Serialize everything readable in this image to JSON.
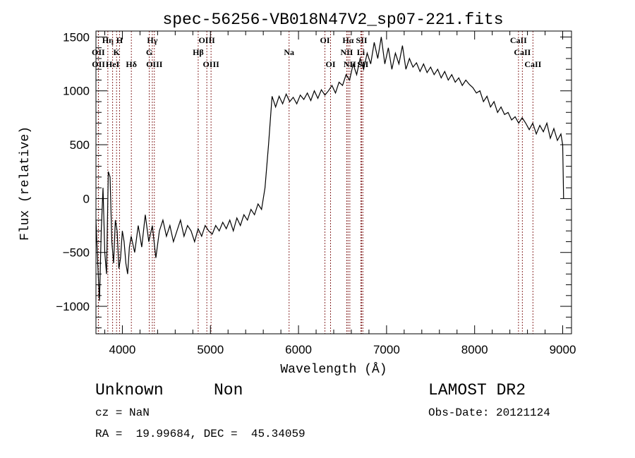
{
  "chart_data": {
    "type": "line",
    "title": "spec-56256-VB018N47V2_sp07-221.fits",
    "xlabel": "Wavelength (Å)",
    "ylabel": "Flux (relative)",
    "xlim": [
      3700,
      9100
    ],
    "ylim": [
      -1255,
      1555
    ],
    "xticks": [
      4000,
      5000,
      6000,
      7000,
      8000,
      9000
    ],
    "xtick_labels": [
      "4000",
      "5000",
      "6000",
      "7000",
      "8000",
      "9000"
    ],
    "yticks": [
      -1000,
      -500,
      0,
      500,
      1000,
      1500
    ],
    "ytick_labels": [
      "−1000",
      "−500",
      "0",
      "500",
      "1000",
      "1500"
    ],
    "grid": false,
    "line_color": "#000000",
    "marker_color": "#8b2e2e",
    "series": [
      {
        "name": "spectrum",
        "points": [
          [
            3700,
            -200
          ],
          [
            3720,
            -600
          ],
          [
            3740,
            -950
          ],
          [
            3760,
            -300
          ],
          [
            3780,
            100
          ],
          [
            3800,
            -500
          ],
          [
            3820,
            -700
          ],
          [
            3840,
            250
          ],
          [
            3860,
            200
          ],
          [
            3880,
            -400
          ],
          [
            3900,
            -600
          ],
          [
            3920,
            -200
          ],
          [
            3940,
            -300
          ],
          [
            3960,
            -650
          ],
          [
            3980,
            -550
          ],
          [
            4000,
            -300
          ],
          [
            4020,
            -400
          ],
          [
            4040,
            -600
          ],
          [
            4060,
            -700
          ],
          [
            4080,
            -450
          ],
          [
            4100,
            -350
          ],
          [
            4140,
            -500
          ],
          [
            4180,
            -250
          ],
          [
            4220,
            -450
          ],
          [
            4260,
            -150
          ],
          [
            4300,
            -400
          ],
          [
            4340,
            -250
          ],
          [
            4380,
            -550
          ],
          [
            4420,
            -300
          ],
          [
            4460,
            -200
          ],
          [
            4500,
            -350
          ],
          [
            4540,
            -250
          ],
          [
            4580,
            -400
          ],
          [
            4620,
            -300
          ],
          [
            4660,
            -200
          ],
          [
            4700,
            -350
          ],
          [
            4740,
            -250
          ],
          [
            4780,
            -300
          ],
          [
            4820,
            -400
          ],
          [
            4860,
            -280
          ],
          [
            4900,
            -350
          ],
          [
            4940,
            -250
          ],
          [
            4980,
            -300
          ],
          [
            5020,
            -330
          ],
          [
            5060,
            -250
          ],
          [
            5100,
            -300
          ],
          [
            5140,
            -220
          ],
          [
            5180,
            -280
          ],
          [
            5220,
            -200
          ],
          [
            5260,
            -300
          ],
          [
            5300,
            -180
          ],
          [
            5340,
            -250
          ],
          [
            5380,
            -150
          ],
          [
            5420,
            -200
          ],
          [
            5460,
            -100
          ],
          [
            5500,
            -150
          ],
          [
            5540,
            -50
          ],
          [
            5580,
            -100
          ],
          [
            5620,
            100
          ],
          [
            5660,
            500
          ],
          [
            5700,
            950
          ],
          [
            5740,
            850
          ],
          [
            5780,
            950
          ],
          [
            5820,
            880
          ],
          [
            5860,
            970
          ],
          [
            5900,
            900
          ],
          [
            5940,
            940
          ],
          [
            5980,
            880
          ],
          [
            6020,
            960
          ],
          [
            6060,
            920
          ],
          [
            6100,
            980
          ],
          [
            6140,
            910
          ],
          [
            6180,
            1000
          ],
          [
            6220,
            930
          ],
          [
            6260,
            1010
          ],
          [
            6300,
            960
          ],
          [
            6340,
            1000
          ],
          [
            6380,
            1050
          ],
          [
            6420,
            980
          ],
          [
            6460,
            1080
          ],
          [
            6500,
            1050
          ],
          [
            6540,
            1150
          ],
          [
            6580,
            1100
          ],
          [
            6620,
            1250
          ],
          [
            6660,
            1150
          ],
          [
            6700,
            1300
          ],
          [
            6740,
            1200
          ],
          [
            6780,
            1350
          ],
          [
            6820,
            1250
          ],
          [
            6860,
            1450
          ],
          [
            6900,
            1300
          ],
          [
            6940,
            1500
          ],
          [
            6980,
            1250
          ],
          [
            7020,
            1400
          ],
          [
            7060,
            1200
          ],
          [
            7100,
            1350
          ],
          [
            7140,
            1250
          ],
          [
            7180,
            1420
          ],
          [
            7220,
            1200
          ],
          [
            7260,
            1300
          ],
          [
            7300,
            1220
          ],
          [
            7340,
            1260
          ],
          [
            7380,
            1180
          ],
          [
            7420,
            1250
          ],
          [
            7460,
            1170
          ],
          [
            7500,
            1220
          ],
          [
            7540,
            1150
          ],
          [
            7580,
            1200
          ],
          [
            7620,
            1120
          ],
          [
            7660,
            1180
          ],
          [
            7700,
            1100
          ],
          [
            7740,
            1150
          ],
          [
            7780,
            1080
          ],
          [
            7820,
            1120
          ],
          [
            7860,
            1050
          ],
          [
            7900,
            1100
          ],
          [
            7940,
            1060
          ],
          [
            7980,
            1030
          ],
          [
            8020,
            980
          ],
          [
            8060,
            1000
          ],
          [
            8100,
            900
          ],
          [
            8140,
            950
          ],
          [
            8180,
            850
          ],
          [
            8220,
            900
          ],
          [
            8260,
            800
          ],
          [
            8300,
            850
          ],
          [
            8340,
            780
          ],
          [
            8380,
            800
          ],
          [
            8420,
            730
          ],
          [
            8460,
            760
          ],
          [
            8500,
            700
          ],
          [
            8540,
            750
          ],
          [
            8580,
            700
          ],
          [
            8620,
            640
          ],
          [
            8660,
            700
          ],
          [
            8700,
            600
          ],
          [
            8740,
            680
          ],
          [
            8780,
            620
          ],
          [
            8820,
            700
          ],
          [
            8860,
            560
          ],
          [
            8900,
            650
          ],
          [
            8940,
            540
          ],
          [
            8980,
            600
          ],
          [
            9000,
            500
          ],
          [
            9010,
            0
          ]
        ]
      }
    ],
    "line_markers": [
      {
        "label": "Hη",
        "wavelength": 3835,
        "row": 1
      },
      {
        "label": "H",
        "wavelength": 3968,
        "row": 1
      },
      {
        "label": "Hγ",
        "wavelength": 4340,
        "row": 1
      },
      {
        "label": "OIII",
        "wavelength": 4959,
        "row": 1
      },
      {
        "label": "OI",
        "wavelength": 6300,
        "row": 1
      },
      {
        "label": "Hα",
        "wavelength": 6563,
        "row": 1
      },
      {
        "label": "SII",
        "wavelength": 6717,
        "row": 1
      },
      {
        "label": "CaII",
        "wavelength": 8498,
        "row": 1
      },
      {
        "label": "OII",
        "wavelength": 3727,
        "row": 2
      },
      {
        "label": "K",
        "wavelength": 3934,
        "row": 2
      },
      {
        "label": "G",
        "wavelength": 4305,
        "row": 2
      },
      {
        "label": "Hβ",
        "wavelength": 4861,
        "row": 2
      },
      {
        "label": "Na",
        "wavelength": 5893,
        "row": 2
      },
      {
        "label": "NII",
        "wavelength": 6548,
        "row": 2
      },
      {
        "label": "Li",
        "wavelength": 6708,
        "row": 2
      },
      {
        "label": "CaII",
        "wavelength": 8542,
        "row": 2
      },
      {
        "label": "OII",
        "wavelength": 3729,
        "row": 3
      },
      {
        "label": "HeI",
        "wavelength": 3889,
        "row": 3
      },
      {
        "label": "Hδ",
        "wavelength": 4102,
        "row": 3
      },
      {
        "label": "OIII",
        "wavelength": 4363,
        "row": 3
      },
      {
        "label": "OIII",
        "wavelength": 5007,
        "row": 3
      },
      {
        "label": "OI",
        "wavelength": 6364,
        "row": 3
      },
      {
        "label": "NII",
        "wavelength": 6583,
        "row": 3
      },
      {
        "label": "SII",
        "wavelength": 6731,
        "row": 3
      },
      {
        "label": "CaII",
        "wavelength": 8662,
        "row": 3
      }
    ]
  },
  "info": {
    "object_class": "Unknown",
    "subclass": "Non",
    "survey": "LAMOST DR2",
    "redshift": "cz = NaN",
    "obs_date": "Obs-Date: 20121124",
    "coords": "RA =  19.99684, DEC =  45.34059"
  }
}
